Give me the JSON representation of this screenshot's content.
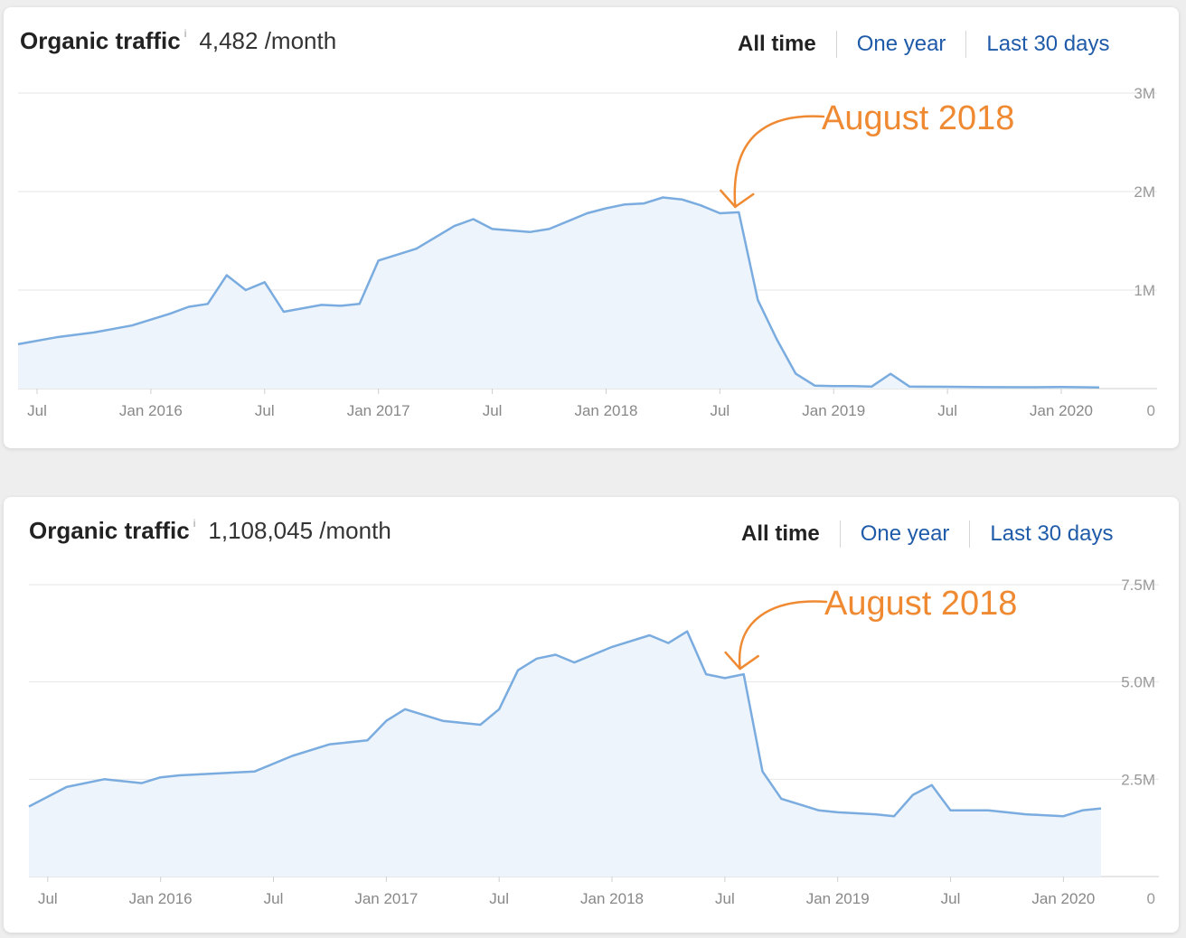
{
  "charts": [
    {
      "title": "Organic traffic",
      "info_icon": "i",
      "value": "4,482",
      "unit": "/month",
      "tabs": [
        "All time",
        "One year",
        "Last 30 days"
      ],
      "active_tab": "All time",
      "annotation": "August 2018"
    },
    {
      "title": "Organic traffic",
      "info_icon": "i",
      "value": "1,108,045",
      "unit": "/month",
      "tabs": [
        "All time",
        "One year",
        "Last 30 days"
      ],
      "active_tab": "All time",
      "annotation": "August 2018"
    }
  ],
  "colors": {
    "line": "#7aace0",
    "fill": "#eef4fb",
    "annotation": "#ef8a33",
    "tab_link": "#1f5ba8"
  },
  "chart_data": [
    {
      "type": "area",
      "x_ticks": [
        "Jul",
        "Jan 2016",
        "Jul",
        "Jan 2017",
        "Jul",
        "Jan 2018",
        "Jul",
        "Jan 2019",
        "Jul",
        "Jan 2020"
      ],
      "y_ticks": [
        "0",
        "1M",
        "2M",
        "3M"
      ],
      "ylim": [
        0,
        3000000
      ],
      "xlim": [
        "2015-06",
        "2020-03"
      ],
      "grid": true,
      "annotation": {
        "text": "August 2018",
        "x": "2018-08"
      },
      "series": [
        {
          "x": [
            "2015-06",
            "2015-08",
            "2015-10",
            "2015-12",
            "2016-01",
            "2016-02",
            "2016-03",
            "2016-04",
            "2016-05",
            "2016-06",
            "2016-07",
            "2016-08",
            "2016-10",
            "2016-11",
            "2016-12",
            "2017-01",
            "2017-03",
            "2017-05",
            "2017-06",
            "2017-07",
            "2017-09",
            "2017-10",
            "2017-12",
            "2018-01",
            "2018-02",
            "2018-03",
            "2018-04",
            "2018-05",
            "2018-06",
            "2018-07",
            "2018-08",
            "2018-09",
            "2018-10",
            "2018-11",
            "2018-12",
            "2019-01",
            "2019-02",
            "2019-03",
            "2019-04",
            "2019-05",
            "2019-07",
            "2019-09",
            "2019-11",
            "2020-01",
            "2020-03"
          ],
          "values": [
            450000,
            520000,
            570000,
            640000,
            700000,
            760000,
            830000,
            860000,
            1150000,
            1000000,
            1080000,
            780000,
            850000,
            840000,
            860000,
            1300000,
            1420000,
            1650000,
            1720000,
            1620000,
            1590000,
            1620000,
            1780000,
            1830000,
            1870000,
            1880000,
            1940000,
            1920000,
            1860000,
            1780000,
            1790000,
            900000,
            500000,
            150000,
            30000,
            25000,
            25000,
            20000,
            150000,
            20000,
            18000,
            15000,
            14000,
            16000,
            12000
          ]
        }
      ]
    },
    {
      "type": "area",
      "x_ticks": [
        "Jul",
        "Jan 2016",
        "Jul",
        "Jan 2017",
        "Jul",
        "Jan 2018",
        "Jul",
        "Jan 2019",
        "Jul",
        "Jan 2020"
      ],
      "y_ticks": [
        "0",
        "2.5M",
        "5.0M",
        "7.5M"
      ],
      "ylim": [
        0,
        7500000
      ],
      "xlim": [
        "2015-06",
        "2020-03"
      ],
      "grid": true,
      "annotation": {
        "text": "August 2018",
        "x": "2018-08"
      },
      "series": [
        {
          "x": [
            "2015-06",
            "2015-08",
            "2015-10",
            "2015-12",
            "2016-01",
            "2016-02",
            "2016-04",
            "2016-06",
            "2016-08",
            "2016-10",
            "2016-12",
            "2017-01",
            "2017-02",
            "2017-04",
            "2017-06",
            "2017-07",
            "2017-08",
            "2017-09",
            "2017-10",
            "2017-11",
            "2018-01",
            "2018-03",
            "2018-04",
            "2018-05",
            "2018-06",
            "2018-07",
            "2018-08",
            "2018-09",
            "2018-10",
            "2018-12",
            "2019-01",
            "2019-03",
            "2019-04",
            "2019-05",
            "2019-06",
            "2019-07",
            "2019-09",
            "2019-11",
            "2020-01",
            "2020-02",
            "2020-03"
          ],
          "values": [
            1800000,
            2300000,
            2500000,
            2400000,
            2550000,
            2600000,
            2650000,
            2700000,
            3100000,
            3400000,
            3500000,
            4000000,
            4300000,
            4000000,
            3900000,
            4300000,
            5300000,
            5600000,
            5700000,
            5500000,
            5900000,
            6200000,
            6000000,
            6300000,
            5200000,
            5100000,
            5200000,
            2700000,
            2000000,
            1700000,
            1650000,
            1600000,
            1550000,
            2100000,
            2350000,
            1700000,
            1700000,
            1600000,
            1550000,
            1700000,
            1750000
          ]
        }
      ]
    }
  ]
}
